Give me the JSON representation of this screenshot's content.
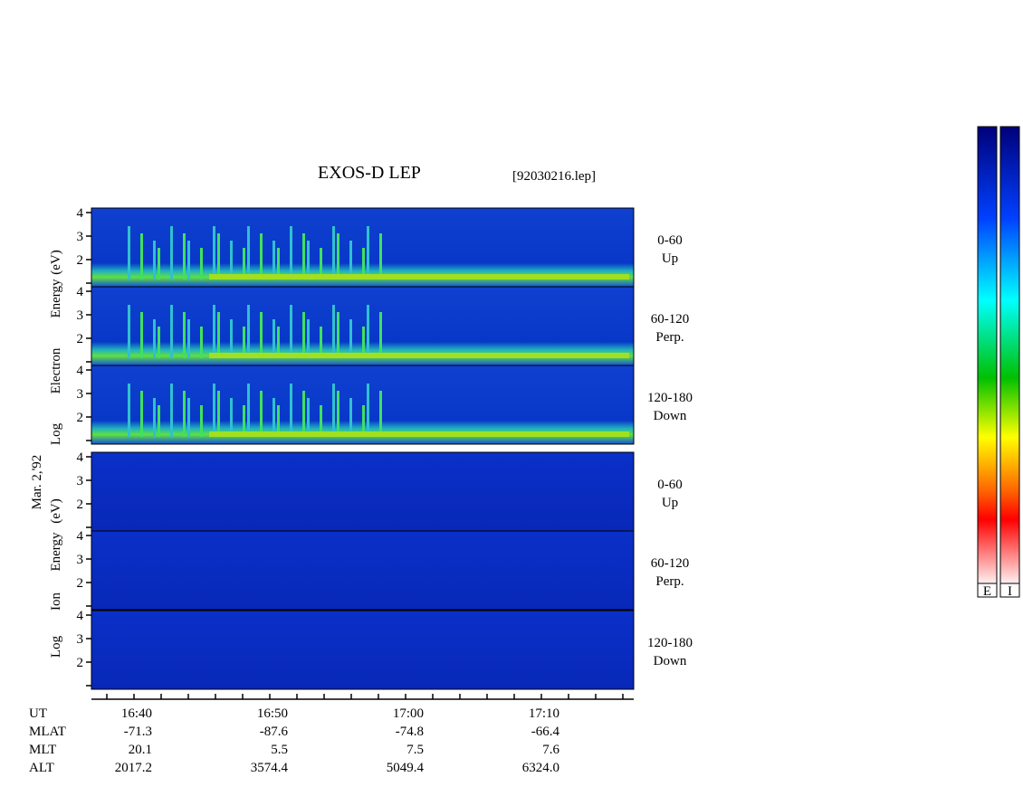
{
  "title": "EXOS-D LEP",
  "file": "[92030216.lep]",
  "date": "Mar. 2,'92",
  "panels": [
    {
      "axis_label": [
        "Log",
        "Electron",
        "Energy",
        "(eV)"
      ],
      "channels": [
        {
          "range": "0-60",
          "dir": "Up"
        },
        {
          "range": "60-120",
          "dir": "Perp."
        },
        {
          "range": "120-180",
          "dir": "Down"
        }
      ],
      "yticks": [
        2,
        3,
        4
      ]
    },
    {
      "axis_label": [
        "Log",
        "Ion",
        "Energy",
        "(eV)"
      ],
      "channels": [
        {
          "range": "0-60",
          "dir": "Up"
        },
        {
          "range": "60-120",
          "dir": "Perp."
        },
        {
          "range": "120-180",
          "dir": "Down"
        }
      ],
      "yticks": [
        2,
        3,
        4
      ]
    }
  ],
  "x_axis": [
    {
      "label": "UT",
      "values": [
        "16:40",
        "16:50",
        "17:00",
        "17:10"
      ]
    },
    {
      "label": "MLAT",
      "values": [
        "-71.3",
        "-87.6",
        "-74.8",
        "-66.4"
      ]
    },
    {
      "label": "MLT",
      "values": [
        "20.1",
        "5.5",
        "7.5",
        "7.6"
      ]
    },
    {
      "label": "ALT",
      "values": [
        "2017.2",
        "3574.4",
        "5049.4",
        "6324.0"
      ]
    }
  ],
  "colorbars": [
    "E",
    "I"
  ]
}
